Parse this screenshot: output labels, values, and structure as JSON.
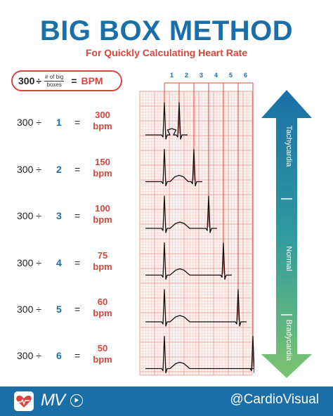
{
  "header": {
    "title": "BIG BOX METHOD",
    "subtitle": "For Quickly Calculating Heart Rate"
  },
  "formula": {
    "numerator": "300",
    "divide": "÷",
    "fraction_top": "# of big",
    "fraction_bottom": "boxes",
    "equals": "=",
    "result": "BPM"
  },
  "rows": [
    {
      "expr": "300 ÷",
      "boxes": "1",
      "eq": "=",
      "bpm_value": "300",
      "bpm_unit": "bpm"
    },
    {
      "expr": "300 ÷",
      "boxes": "2",
      "eq": "=",
      "bpm_value": "150",
      "bpm_unit": "bpm"
    },
    {
      "expr": "300 ÷",
      "boxes": "3",
      "eq": "=",
      "bpm_value": "100",
      "bpm_unit": "bpm"
    },
    {
      "expr": "300 ÷",
      "boxes": "4",
      "eq": "=",
      "bpm_value": "75",
      "bpm_unit": "bpm"
    },
    {
      "expr": "300 ÷",
      "boxes": "5",
      "eq": "=",
      "bpm_value": "60",
      "bpm_unit": "bpm"
    },
    {
      "expr": "300 ÷",
      "boxes": "6",
      "eq": "=",
      "bpm_value": "50",
      "bpm_unit": "bpm"
    }
  ],
  "grid": {
    "box_numbers": [
      "1",
      "2",
      "3",
      "4",
      "5",
      "6"
    ],
    "grid_color": "#f2b8b0",
    "bracket_color": "#d9453d"
  },
  "arrow": {
    "top_label": "Tachycardia",
    "middle_label": "Normal",
    "bottom_label": "Bradycardia",
    "top_color": "#1b6fa8",
    "mid_color": "#2f9a9f",
    "bottom_color": "#7cc46f"
  },
  "footer": {
    "logo_text": "MV",
    "handle": "@CardioVisual",
    "bg_color": "#1b6fa8"
  },
  "icons": [
    "heart-logo-icon",
    "play-icon",
    "double-arrow-icon"
  ]
}
